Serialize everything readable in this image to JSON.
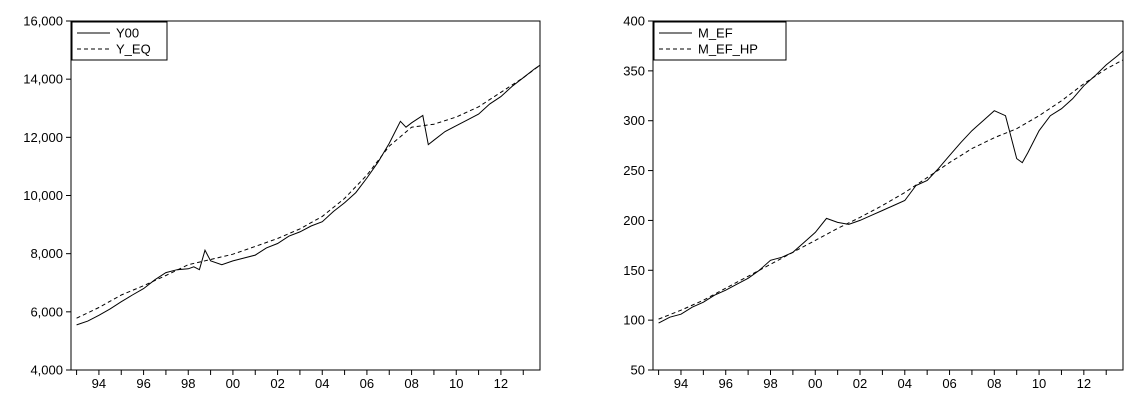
{
  "chart_data": [
    {
      "type": "line",
      "title": "",
      "xlabel": "",
      "ylabel": "",
      "ylim": [
        4000,
        16000
      ],
      "xlim": [
        1992.75,
        2013.75
      ],
      "y_ticks": [
        4000,
        6000,
        8000,
        10000,
        12000,
        14000,
        16000
      ],
      "y_tick_labels": [
        "4,000",
        "6,000",
        "8,000",
        "10,000",
        "12,000",
        "14,000",
        "16,000"
      ],
      "x_ticks": [
        1994,
        1996,
        1998,
        2000,
        2002,
        2004,
        2006,
        2008,
        2010,
        2012
      ],
      "x_tick_labels": [
        "94",
        "96",
        "98",
        "00",
        "02",
        "04",
        "06",
        "08",
        "10",
        "12"
      ],
      "legend": "top-left",
      "grid": false,
      "series": [
        {
          "name": "Y00",
          "style": "solid",
          "x": [
            1993.0,
            1993.5,
            1994.0,
            1994.5,
            1995.0,
            1995.5,
            1996.0,
            1996.5,
            1997.0,
            1997.5,
            1998.0,
            1998.25,
            1998.5,
            1998.75,
            1999.0,
            1999.5,
            2000.0,
            2000.5,
            2001.0,
            2001.5,
            2002.0,
            2002.5,
            2003.0,
            2003.5,
            2004.0,
            2004.5,
            2005.0,
            2005.5,
            2006.0,
            2006.5,
            2007.0,
            2007.5,
            2007.75,
            2008.0,
            2008.5,
            2008.75,
            2009.0,
            2009.5,
            2010.0,
            2010.5,
            2011.0,
            2011.5,
            2012.0,
            2012.5,
            2013.0,
            2013.5,
            2013.75
          ],
          "values": [
            5550,
            5680,
            5880,
            6100,
            6350,
            6580,
            6800,
            7100,
            7350,
            7450,
            7480,
            7550,
            7450,
            8120,
            7750,
            7620,
            7750,
            7850,
            7950,
            8200,
            8350,
            8600,
            8750,
            8950,
            9100,
            9450,
            9750,
            10100,
            10600,
            11150,
            11800,
            12550,
            12350,
            12500,
            12750,
            11750,
            11900,
            12200,
            12400,
            12600,
            12800,
            13150,
            13400,
            13750,
            14050,
            14350,
            14480
          ]
        },
        {
          "name": "Y_EQ",
          "style": "dashed",
          "x": [
            1993.0,
            1994.0,
            1995.0,
            1996.0,
            1997.0,
            1998.0,
            1999.0,
            2000.0,
            2001.0,
            2002.0,
            2003.0,
            2004.0,
            2005.0,
            2006.0,
            2007.0,
            2008.0,
            2009.0,
            2010.0,
            2011.0,
            2012.0,
            2013.0,
            2013.75
          ],
          "values": [
            5780,
            6150,
            6580,
            6900,
            7250,
            7620,
            7800,
            7980,
            8250,
            8520,
            8850,
            9280,
            9900,
            10700,
            11700,
            12350,
            12450,
            12700,
            13050,
            13550,
            14050,
            14480
          ]
        }
      ]
    },
    {
      "type": "line",
      "title": "",
      "xlabel": "",
      "ylabel": "",
      "ylim": [
        50,
        400
      ],
      "xlim": [
        1992.75,
        2013.75
      ],
      "y_ticks": [
        50,
        100,
        150,
        200,
        250,
        300,
        350,
        400
      ],
      "y_tick_labels": [
        "50",
        "100",
        "150",
        "200",
        "250",
        "300",
        "350",
        "400"
      ],
      "x_ticks": [
        1994,
        1996,
        1998,
        2000,
        2002,
        2004,
        2006,
        2008,
        2010,
        2012
      ],
      "x_tick_labels": [
        "94",
        "96",
        "98",
        "00",
        "02",
        "04",
        "06",
        "08",
        "10",
        "12"
      ],
      "legend": "top-left",
      "grid": false,
      "series": [
        {
          "name": "M_EF",
          "style": "solid",
          "x": [
            1993.0,
            1993.5,
            1994.0,
            1994.5,
            1995.0,
            1995.5,
            1996.0,
            1996.5,
            1997.0,
            1997.5,
            1998.0,
            1998.5,
            1999.0,
            1999.5,
            2000.0,
            2000.5,
            2001.0,
            2001.5,
            2002.0,
            2002.5,
            2003.0,
            2003.5,
            2004.0,
            2004.5,
            2005.0,
            2005.5,
            2006.0,
            2006.5,
            2007.0,
            2007.5,
            2008.0,
            2008.5,
            2009.0,
            2009.25,
            2009.5,
            2010.0,
            2010.5,
            2011.0,
            2011.5,
            2012.0,
            2012.5,
            2013.0,
            2013.5,
            2013.75
          ],
          "values": [
            97,
            103,
            106,
            113,
            118,
            125,
            130,
            136,
            142,
            150,
            160,
            163,
            168,
            178,
            188,
            202,
            198,
            196,
            200,
            205,
            210,
            215,
            220,
            235,
            240,
            252,
            265,
            278,
            290,
            300,
            310,
            305,
            262,
            258,
            268,
            290,
            305,
            312,
            322,
            335,
            345,
            356,
            365,
            370
          ]
        },
        {
          "name": "M_EF_HP",
          "style": "dashed",
          "x": [
            1993.0,
            1994.0,
            1995.0,
            1996.0,
            1997.0,
            1998.0,
            1999.0,
            2000.0,
            2001.0,
            2002.0,
            2003.0,
            2004.0,
            2005.0,
            2006.0,
            2007.0,
            2008.0,
            2009.0,
            2010.0,
            2011.0,
            2012.0,
            2013.0,
            2013.75
          ],
          "values": [
            101,
            110,
            120,
            132,
            144,
            156,
            168,
            180,
            192,
            203,
            215,
            228,
            243,
            258,
            272,
            283,
            292,
            305,
            320,
            337,
            352,
            361
          ]
        }
      ]
    }
  ]
}
